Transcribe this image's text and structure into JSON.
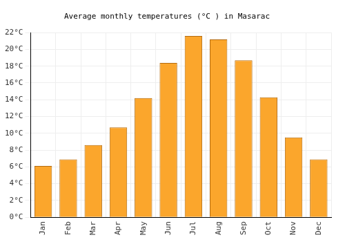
{
  "chart_data": {
    "type": "bar",
    "title": "Average monthly temperatures (°C ) in Masarac",
    "categories": [
      "Jan",
      "Feb",
      "Mar",
      "Apr",
      "May",
      "Jun",
      "Jul",
      "Aug",
      "Sep",
      "Oct",
      "Nov",
      "Dec"
    ],
    "values": [
      6.1,
      6.9,
      8.6,
      10.7,
      14.2,
      18.4,
      21.6,
      21.2,
      18.7,
      14.3,
      9.5,
      6.9
    ],
    "color": "#fba62c",
    "ylim": [
      0,
      22
    ],
    "yticks": [
      {
        "value": 0,
        "label": "0°C"
      },
      {
        "value": 2,
        "label": "2°C"
      },
      {
        "value": 4,
        "label": "4°C"
      },
      {
        "value": 6,
        "label": "6°C"
      },
      {
        "value": 8,
        "label": "8°C"
      },
      {
        "value": 10,
        "label": "10°C"
      },
      {
        "value": 12,
        "label": "12°C"
      },
      {
        "value": 14,
        "label": "14°C"
      },
      {
        "value": 16,
        "label": "16°C"
      },
      {
        "value": 18,
        "label": "18°C"
      },
      {
        "value": 20,
        "label": "20°C"
      },
      {
        "value": 22,
        "label": "22°C"
      }
    ],
    "grid": true
  }
}
